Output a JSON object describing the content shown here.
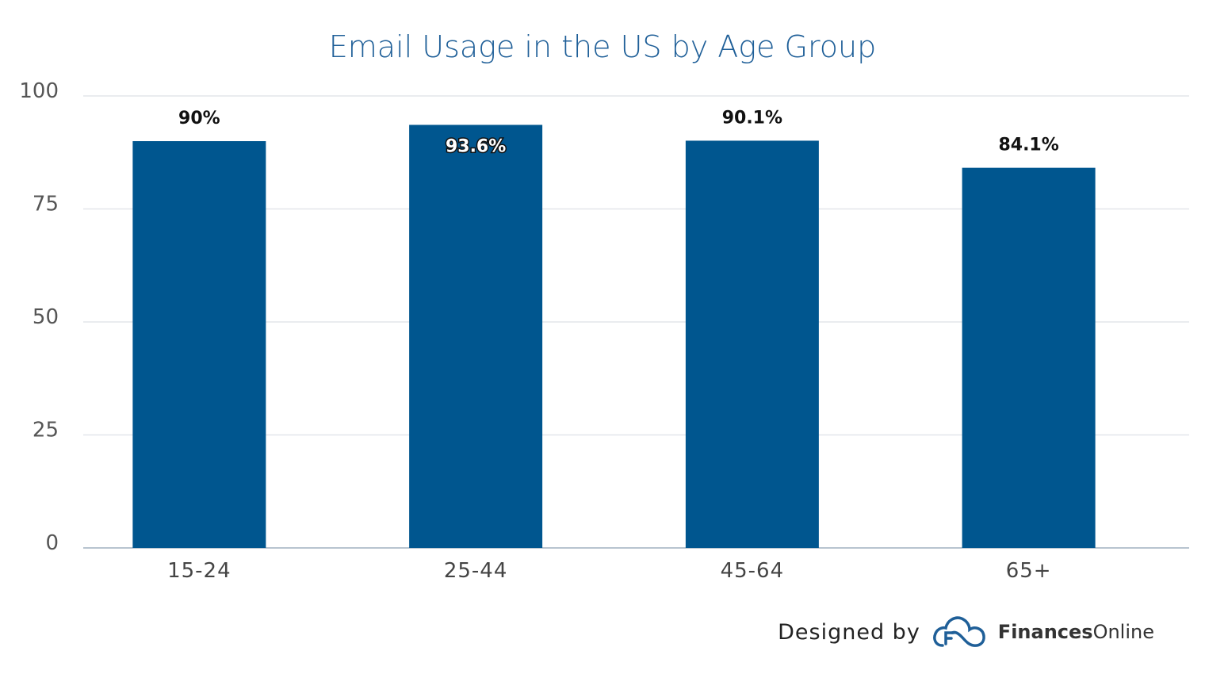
{
  "chart_data": {
    "type": "bar",
    "title": "Email Usage in the US by Age Group",
    "categories": [
      "15-24",
      "25-44",
      "45-64",
      "65+"
    ],
    "values": [
      90,
      93.6,
      90.1,
      84.1
    ],
    "data_labels": [
      "90%",
      "93.6%",
      "90.1%",
      "84.1%"
    ],
    "ylim": [
      0,
      100
    ],
    "yticks": [
      0,
      25,
      50,
      75,
      100
    ],
    "ytick_labels": [
      "0",
      "25",
      "50",
      "75",
      "100"
    ],
    "xlabel": "",
    "ylabel": "",
    "grid": true,
    "bar_color": "#00568f",
    "grid_color": "#e3e6ea",
    "axis_color": "#b8c4cf"
  },
  "footer": {
    "designed_by": "Designed by",
    "brand_bold": "Finances",
    "brand_regular": "Online",
    "logo_icon": "cloud-f-logo-icon",
    "logo_color": "#1f5f98"
  }
}
